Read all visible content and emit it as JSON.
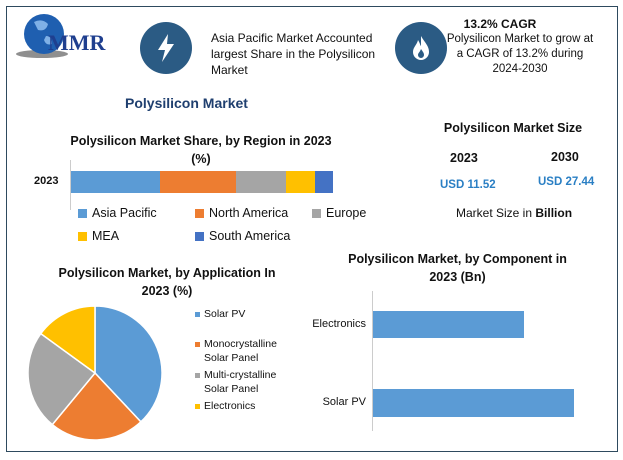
{
  "logo": {
    "text": "MMR"
  },
  "highlight1": {
    "icon": "lightning-icon",
    "text": "Asia Pacific Market Accounted largest Share in the Polysilicon Market"
  },
  "highlight2": {
    "icon": "flame-icon",
    "title": "13.2% CAGR",
    "text": "Polysilicon Market to grow at a CAGR of 13.2% during 2024-2030"
  },
  "main_title": "Polysilicon Market",
  "market_size": {
    "title": "Polysilicon Market Size",
    "years": [
      "2023",
      "2030"
    ],
    "values": [
      "USD 11.52",
      "USD 27.44"
    ],
    "note_prefix": "Market Size in ",
    "note_bold": "Billion",
    "value_color": "#2a7fc4"
  },
  "chart_data": [
    {
      "type": "bar",
      "orientation": "horizontal",
      "stacked": true,
      "title": "Polysilicon Market Share, by Region in 2023 (%)",
      "categories": [
        "2023"
      ],
      "series": [
        {
          "name": "Asia Pacific",
          "values": [
            34
          ],
          "color": "#5b9bd5"
        },
        {
          "name": "North America",
          "values": [
            29
          ],
          "color": "#ed7d31"
        },
        {
          "name": "Europe",
          "values": [
            19
          ],
          "color": "#a5a5a5"
        },
        {
          "name": "MEA",
          "values": [
            11
          ],
          "color": "#ffc000"
        },
        {
          "name": "South America",
          "values": [
            7
          ],
          "color": "#4472c4"
        }
      ],
      "legend": "bottom"
    },
    {
      "type": "pie",
      "title": "Polysilicon Market, by Application In 2023 (%)",
      "labels": [
        "Solar PV",
        "Monocrystalline Solar Panel",
        "Multi-crystalline Solar Panel",
        "Electronics"
      ],
      "values": [
        38,
        23,
        24,
        15
      ],
      "colors": [
        "#5b9bd5",
        "#ed7d31",
        "#a5a5a5",
        "#ffc000"
      ],
      "legend": "right"
    },
    {
      "type": "bar",
      "orientation": "horizontal",
      "title": "Polysilicon Market, by Component in 2023 (Bn)",
      "categories": [
        "Electronics",
        "Solar PV"
      ],
      "values": [
        0.75,
        1.0
      ],
      "color": "#5b9bd5"
    }
  ]
}
